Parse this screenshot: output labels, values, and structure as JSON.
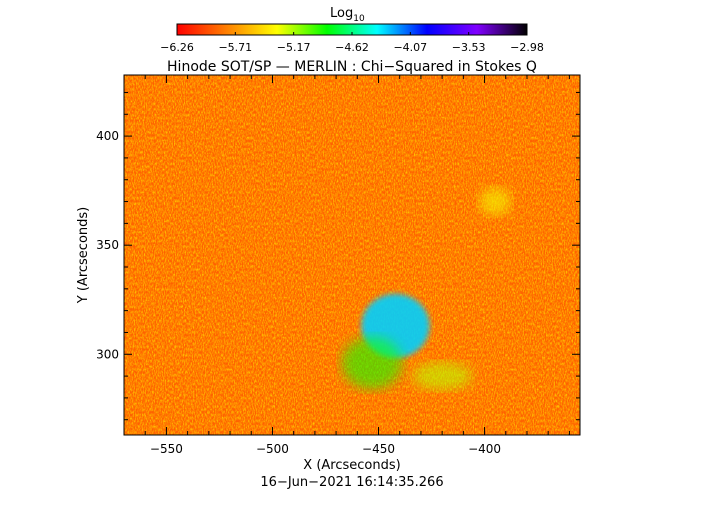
{
  "colorbar": {
    "label": "Log",
    "label_sub": "10",
    "ticks": [
      "−6.26",
      "−5.71",
      "−5.17",
      "−4.62",
      "−4.07",
      "−3.53",
      "−2.98"
    ],
    "range": [
      -6.26,
      -2.98
    ],
    "colors": [
      "#ff0000",
      "#ff8000",
      "#ffff00",
      "#00ff00",
      "#00ffff",
      "#0000ff",
      "#8000ff",
      "#000000"
    ]
  },
  "chart_data": {
    "type": "heatmap",
    "title": "Hinode SOT/SP — MERLIN : Chi−Squared in Stokes Q",
    "xlabel": "X (Arcseconds)",
    "ylabel": "Y (Arcseconds)",
    "xlim": [
      -570,
      -355
    ],
    "ylim": [
      263,
      428
    ],
    "x_ticks": [
      -550,
      -500,
      -450,
      -400
    ],
    "y_ticks": [
      300,
      350,
      400
    ],
    "x_tick_labels": [
      "−550",
      "−500",
      "−450",
      "−400"
    ],
    "y_tick_labels": [
      "300",
      "350",
      "400"
    ],
    "background_value": -5.9,
    "features": [
      {
        "x": -442,
        "y": 313,
        "value": -4.3
      },
      {
        "x": -453,
        "y": 296,
        "value": -4.9
      },
      {
        "x": -420,
        "y": 290,
        "value": -5.2
      },
      {
        "x": -395,
        "y": 370,
        "value": -5.3
      }
    ]
  },
  "timestamp": "16−Jun−2021 16:14:35.266"
}
